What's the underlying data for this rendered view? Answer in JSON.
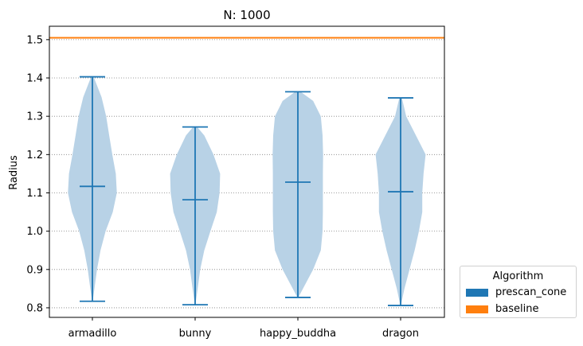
{
  "chart_data": {
    "type": "violin",
    "title": "N: 1000",
    "xlabel": "",
    "ylabel": "Radius",
    "ylim": [
      0.775,
      1.535
    ],
    "yticks": [
      "0.8",
      "0.9",
      "1.0",
      "1.1",
      "1.2",
      "1.3",
      "1.4",
      "1.5"
    ],
    "ytick_values": [
      0.8,
      0.9,
      1.0,
      1.1,
      1.2,
      1.3,
      1.4,
      1.5
    ],
    "grid": "horizontal dotted",
    "categories": [
      "armadillo",
      "bunny",
      "happy_buddha",
      "dragon"
    ],
    "series": [
      {
        "name": "prescan_cone",
        "color": "#1f77b4",
        "fill": "#b8d2e6",
        "violins": [
          {
            "min": 0.817,
            "median": 1.117,
            "max": 1.403,
            "profile": [
              [
                0.817,
                0.01
              ],
              [
                0.85,
                0.08
              ],
              [
                0.9,
                0.18
              ],
              [
                0.95,
                0.32
              ],
              [
                1.0,
                0.52
              ],
              [
                1.05,
                0.8
              ],
              [
                1.1,
                0.96
              ],
              [
                1.15,
                0.92
              ],
              [
                1.2,
                0.78
              ],
              [
                1.25,
                0.66
              ],
              [
                1.3,
                0.54
              ],
              [
                1.35,
                0.36
              ],
              [
                1.403,
                0.05
              ]
            ]
          },
          {
            "min": 0.808,
            "median": 1.082,
            "max": 1.272,
            "profile": [
              [
                0.808,
                0.01
              ],
              [
                0.85,
                0.1
              ],
              [
                0.9,
                0.2
              ],
              [
                0.95,
                0.36
              ],
              [
                1.0,
                0.6
              ],
              [
                1.05,
                0.85
              ],
              [
                1.1,
                0.96
              ],
              [
                1.15,
                0.98
              ],
              [
                1.2,
                0.72
              ],
              [
                1.25,
                0.36
              ],
              [
                1.272,
                0.08
              ]
            ]
          },
          {
            "min": 0.827,
            "median": 1.128,
            "max": 1.364,
            "profile": [
              [
                0.827,
                0.02
              ],
              [
                0.85,
                0.2
              ],
              [
                0.9,
                0.6
              ],
              [
                0.95,
                0.9
              ],
              [
                1.0,
                0.97
              ],
              [
                1.05,
                0.98
              ],
              [
                1.1,
                0.98
              ],
              [
                1.15,
                0.98
              ],
              [
                1.2,
                0.99
              ],
              [
                1.25,
                0.97
              ],
              [
                1.3,
                0.9
              ],
              [
                1.34,
                0.6
              ],
              [
                1.364,
                0.1
              ]
            ]
          },
          {
            "min": 0.806,
            "median": 1.103,
            "max": 1.348,
            "profile": [
              [
                0.806,
                0.01
              ],
              [
                0.85,
                0.15
              ],
              [
                0.9,
                0.35
              ],
              [
                0.95,
                0.55
              ],
              [
                1.0,
                0.72
              ],
              [
                1.05,
                0.85
              ],
              [
                1.1,
                0.85
              ],
              [
                1.15,
                0.9
              ],
              [
                1.2,
                0.98
              ],
              [
                1.25,
                0.6
              ],
              [
                1.3,
                0.22
              ],
              [
                1.348,
                0.05
              ]
            ]
          }
        ]
      },
      {
        "name": "baseline",
        "color": "#ff7f0e",
        "hline": 1.505
      }
    ],
    "legend": {
      "title": "Algorithm",
      "placement": "outside-lower-right",
      "entries": [
        "prescan_cone",
        "baseline"
      ]
    }
  }
}
